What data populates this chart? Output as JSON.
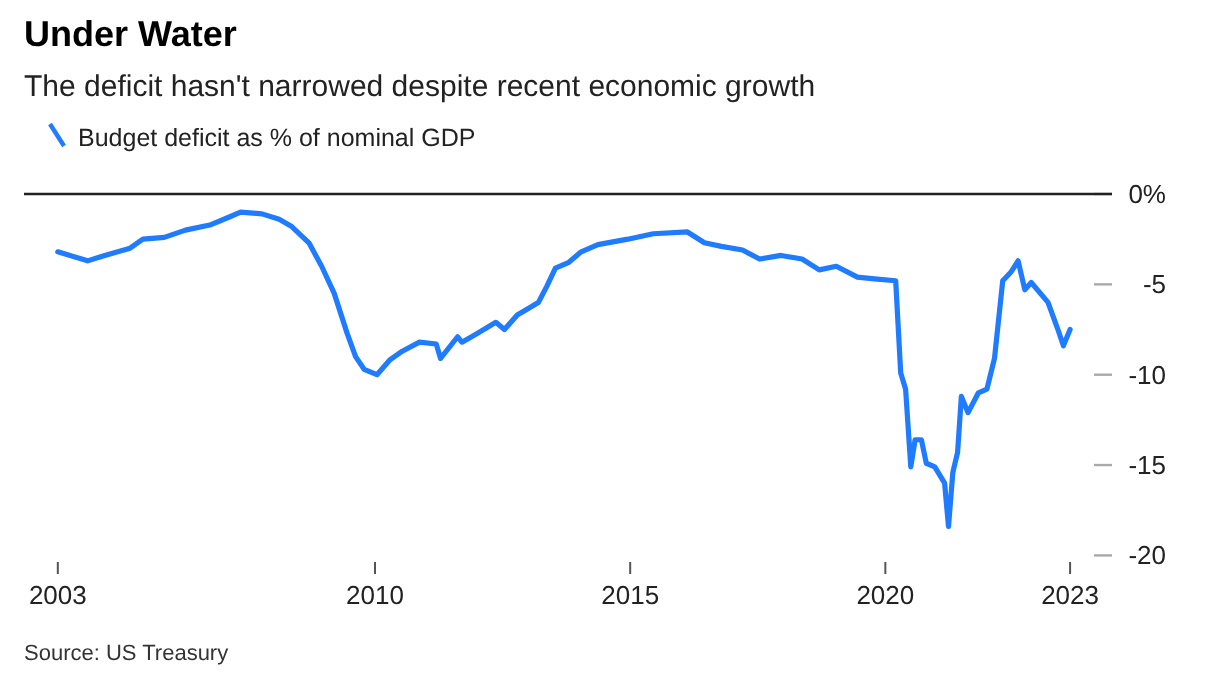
{
  "chart_data": {
    "type": "line",
    "title": "Under Water",
    "subtitle": "The deficit hasn't narrowed despite recent economic growth",
    "annotations": [
      "Source: US Treasury"
    ],
    "legend": "top left",
    "grid": false,
    "xlim": [
      "2003-02-15",
      "2024-06-10"
    ],
    "ylim": [
      -20,
      0
    ],
    "xticks": [
      {
        "value": "2003-10-15",
        "label": "2003"
      },
      {
        "value": "2010-01-01",
        "label": "2010"
      },
      {
        "value": "2015-01-01",
        "label": "2015"
      },
      {
        "value": "2020-01-01",
        "label": "2020"
      },
      {
        "value": "2023-08-15",
        "label": "2023"
      }
    ],
    "yticks": [
      {
        "value": 0,
        "label": "0%"
      },
      -5,
      -10,
      -15,
      -20
    ],
    "ref_lines": [
      {
        "axis": "y",
        "value": 0,
        "color": "#222222"
      }
    ],
    "series": [
      {
        "name": "Budget deficit as % of nominal GDP",
        "color": "#1f7bff",
        "x": [
          "2003-10-15",
          "2004-05-15",
          "2004-09-15",
          "2005-03-15",
          "2005-06-15",
          "2005-11-15",
          "2006-04-15",
          "2006-10-15",
          "2007-02-15",
          "2007-05-15",
          "2007-10-15",
          "2008-02-15",
          "2008-05-15",
          "2008-09-15",
          "2008-12-15",
          "2009-03-15",
          "2009-06-15",
          "2009-08-15",
          "2009-10-15",
          "2010-01-15",
          "2010-04-15",
          "2010-07-15",
          "2010-11-15",
          "2011-03-15",
          "2011-04-15",
          "2011-08-15",
          "2011-09-15",
          "2011-12-15",
          "2012-05-15",
          "2012-07-15",
          "2012-10-15",
          "2013-03-15",
          "2013-05-15",
          "2013-07-15",
          "2013-10-15",
          "2014-01-15",
          "2014-05-15",
          "2014-12-15",
          "2015-06-15",
          "2016-02-15",
          "2016-06-15",
          "2016-10-15",
          "2017-03-15",
          "2017-07-15",
          "2017-12-15",
          "2018-05-15",
          "2018-09-15",
          "2019-01-15",
          "2019-06-15",
          "2019-10-15",
          "2020-03-15",
          "2020-04-20",
          "2020-05-25",
          "2020-07-01",
          "2020-08-01",
          "2020-09-15",
          "2020-10-20",
          "2020-12-20",
          "2021-02-28",
          "2021-03-28",
          "2021-04-28",
          "2021-06-01",
          "2021-06-28",
          "2021-08-15",
          "2021-10-28",
          "2021-12-28",
          "2022-02-20",
          "2022-04-20",
          "2022-06-20",
          "2022-08-08",
          "2022-09-25",
          "2022-11-10",
          "2023-03-10",
          "2023-05-20",
          "2023-06-28",
          "2023-08-15"
        ],
        "values": [
          -3.2,
          -3.7,
          -3.4,
          -3.0,
          -2.5,
          -2.4,
          -2.0,
          -1.7,
          -1.3,
          -1.0,
          -1.1,
          -1.4,
          -1.8,
          -2.7,
          -4.0,
          -5.5,
          -7.7,
          -9.0,
          -9.7,
          -10.0,
          -9.2,
          -8.7,
          -8.2,
          -8.3,
          -9.1,
          -7.9,
          -8.2,
          -7.8,
          -7.1,
          -7.5,
          -6.7,
          -6.0,
          -5.1,
          -4.1,
          -3.8,
          -3.2,
          -2.8,
          -2.5,
          -2.2,
          -2.1,
          -2.7,
          -2.9,
          -3.1,
          -3.6,
          -3.4,
          -3.6,
          -4.2,
          -4.0,
          -4.6,
          -4.7,
          -4.8,
          -9.9,
          -10.8,
          -15.1,
          -13.6,
          -13.6,
          -14.9,
          -15.1,
          -16.0,
          -18.4,
          -15.4,
          -14.3,
          -11.2,
          -12.1,
          -11.0,
          -10.8,
          -9.1,
          -4.8,
          -4.3,
          -3.7,
          -5.3,
          -4.9,
          -6.0,
          -7.5,
          -8.4,
          -7.5
        ]
      }
    ]
  }
}
